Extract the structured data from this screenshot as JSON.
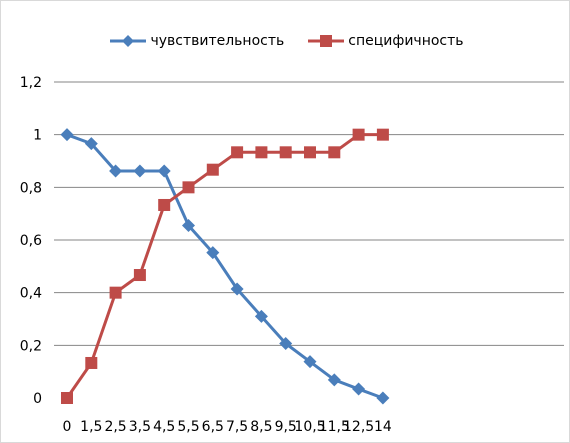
{
  "chart_data": {
    "type": "line",
    "title": "",
    "xlabel": "",
    "ylabel": "",
    "categories": [
      "0",
      "1,5",
      "2,5",
      "3,5",
      "4,5",
      "5,5",
      "6,5",
      "7,5",
      "8,5",
      "9,5",
      "10,5",
      "11,5",
      "12,5",
      "14"
    ],
    "series": [
      {
        "name": "чувствительность",
        "color": "#4a7ebb",
        "marker": "diamond",
        "values": [
          1.0,
          0.966,
          0.862,
          0.862,
          0.862,
          0.655,
          0.552,
          0.414,
          0.31,
          0.207,
          0.138,
          0.069,
          0.034,
          0.0
        ]
      },
      {
        "name": "специфичность",
        "color": "#be4b48",
        "marker": "square",
        "values": [
          0.0,
          0.133,
          0.4,
          0.467,
          0.733,
          0.8,
          0.867,
          0.933,
          0.933,
          0.933,
          0.933,
          0.933,
          1.0,
          1.0
        ]
      }
    ],
    "ylim": [
      0,
      1.2
    ],
    "yticks": [
      "0",
      "0,2",
      "0,4",
      "0,6",
      "0,8",
      "1",
      "1,2"
    ],
    "grid": true,
    "legend_position": "top"
  }
}
